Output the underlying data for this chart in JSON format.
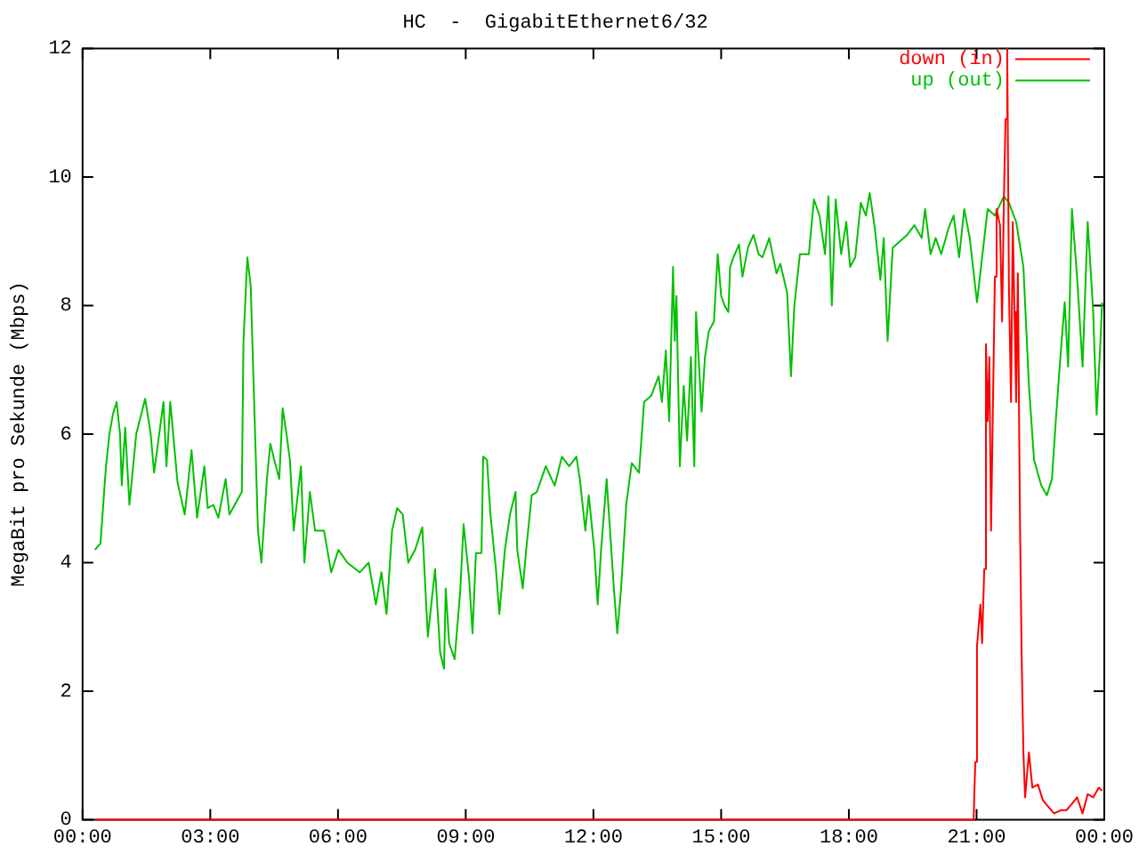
{
  "chart_data": {
    "type": "line",
    "title": "HC  -  GigabitEthernet6/32",
    "ylabel": "MegaBit pro Sekunde (Mbps)",
    "xlim": [
      0,
      24
    ],
    "xticks": [
      {
        "value": 0,
        "label": "00:00"
      },
      {
        "value": 3,
        "label": "03:00"
      },
      {
        "value": 6,
        "label": "06:00"
      },
      {
        "value": 9,
        "label": "09:00"
      },
      {
        "value": 12,
        "label": "12:00"
      },
      {
        "value": 15,
        "label": "15:00"
      },
      {
        "value": 18,
        "label": "18:00"
      },
      {
        "value": 21,
        "label": "21:00"
      },
      {
        "value": 24,
        "label": "00:00"
      }
    ],
    "ylim": [
      0,
      12
    ],
    "yticks": [
      0,
      2,
      4,
      6,
      8,
      10,
      12
    ],
    "grid": false,
    "legend": "top right",
    "marker": "none",
    "line_style": "solid",
    "series": [
      {
        "name": "down (in)",
        "color": "#ff0000",
        "x": [
          0.29,
          10,
          20.93,
          20.97,
          21.01,
          21.09,
          21.13,
          21.18,
          21.22,
          21.26,
          21.3,
          21.34,
          21.43,
          21.47,
          21.55,
          21.6,
          21.64,
          21.68,
          21.72,
          21.76,
          21.81,
          21.85,
          21.89,
          21.93,
          21.97,
          22.02,
          22.06,
          22.1,
          22.14,
          22.23,
          22.31,
          22.44,
          22.56,
          22.69,
          22.82,
          22.98,
          23.11,
          23.24,
          23.36,
          23.49,
          23.61,
          23.74,
          23.87,
          23.95
        ],
        "values": [
          0,
          0,
          0,
          0.9,
          2.7,
          3.35,
          2.75,
          3.9,
          7.4,
          6.2,
          7.2,
          4.5,
          8.45,
          9.5,
          9.25,
          7.75,
          9.6,
          10.9,
          12,
          8.3,
          6.5,
          9.3,
          7.9,
          6.5,
          8.5,
          4.6,
          2.5,
          1.05,
          0.35,
          1.05,
          0.5,
          0.55,
          0.3,
          0.2,
          0.1,
          0.15,
          0.15,
          0.25,
          0.35,
          0.1,
          0.4,
          0.35,
          0.5,
          0.45
        ]
      },
      {
        "name": "up (out)",
        "color": "#00c000",
        "x": [
          0.29,
          0.42,
          0.55,
          0.63,
          0.71,
          0.8,
          0.88,
          0.92,
          1.0,
          1.1,
          1.26,
          1.47,
          1.6,
          1.68,
          1.9,
          1.97,
          2.06,
          2.23,
          2.4,
          2.56,
          2.69,
          2.86,
          2.94,
          3.07,
          3.19,
          3.36,
          3.45,
          3.74,
          3.78,
          3.87,
          3.95,
          4.03,
          4.12,
          4.2,
          4.33,
          4.41,
          4.54,
          4.62,
          4.7,
          4.79,
          4.87,
          4.96,
          5.13,
          5.21,
          5.34,
          5.46,
          5.67,
          5.84,
          6.01,
          6.22,
          6.51,
          6.72,
          6.89,
          7.02,
          7.14,
          7.27,
          7.39,
          7.52,
          7.65,
          7.81,
          7.98,
          8.11,
          8.28,
          8.4,
          8.49,
          8.53,
          8.61,
          8.74,
          8.87,
          8.95,
          9.08,
          9.16,
          9.24,
          9.37,
          9.41,
          9.5,
          9.58,
          9.71,
          9.79,
          9.92,
          10.04,
          10.17,
          10.21,
          10.34,
          10.42,
          10.55,
          10.67,
          10.88,
          11.09,
          11.26,
          11.43,
          11.6,
          11.68,
          11.81,
          11.89,
          12.02,
          12.1,
          12.18,
          12.31,
          12.48,
          12.56,
          12.65,
          12.77,
          12.9,
          13.07,
          13.19,
          13.36,
          13.53,
          13.61,
          13.7,
          13.78,
          13.87,
          13.91,
          13.95,
          14.03,
          14.12,
          14.2,
          14.29,
          14.37,
          14.41,
          14.54,
          14.62,
          14.71,
          14.83,
          14.92,
          15.0,
          15.08,
          15.17,
          15.21,
          15.29,
          15.42,
          15.5,
          15.63,
          15.76,
          15.88,
          15.97,
          16.13,
          16.3,
          16.39,
          16.55,
          16.64,
          16.72,
          16.85,
          16.93,
          17.06,
          17.18,
          17.31,
          17.44,
          17.52,
          17.6,
          17.69,
          17.82,
          17.94,
          18.03,
          18.15,
          18.28,
          18.4,
          18.49,
          18.61,
          18.74,
          18.82,
          18.91,
          19.03,
          19.2,
          19.37,
          19.54,
          19.71,
          19.79,
          19.92,
          20.04,
          20.17,
          20.34,
          20.46,
          20.59,
          20.71,
          20.84,
          21.01,
          21.13,
          21.26,
          21.43,
          21.64,
          21.76,
          21.93,
          22.1,
          22.23,
          22.35,
          22.52,
          22.65,
          22.77,
          22.86,
          22.98,
          23.07,
          23.15,
          23.24,
          23.36,
          23.49,
          23.61,
          23.74,
          23.82,
          23.91,
          23.95
        ],
        "values": [
          4.2,
          4.3,
          5.5,
          6.0,
          6.3,
          6.5,
          6.0,
          5.2,
          6.1,
          4.9,
          6.0,
          6.55,
          6.0,
          5.4,
          6.5,
          5.5,
          6.5,
          5.25,
          4.75,
          5.75,
          4.7,
          5.5,
          4.85,
          4.9,
          4.7,
          5.3,
          4.75,
          5.1,
          7.45,
          8.75,
          8.3,
          6.5,
          4.5,
          4.0,
          5.3,
          5.85,
          5.5,
          5.3,
          6.4,
          6.0,
          5.6,
          4.5,
          5.5,
          4.0,
          5.1,
          4.5,
          4.5,
          3.85,
          4.2,
          4.0,
          3.85,
          4.0,
          3.35,
          3.85,
          3.2,
          4.5,
          4.85,
          4.75,
          4.0,
          4.2,
          4.55,
          2.85,
          3.9,
          2.6,
          2.35,
          3.6,
          2.75,
          2.5,
          3.55,
          4.6,
          3.75,
          2.9,
          4.15,
          4.15,
          5.65,
          5.6,
          4.75,
          3.9,
          3.2,
          4.2,
          4.75,
          5.1,
          4.2,
          3.6,
          4.2,
          5.05,
          5.1,
          5.5,
          5.2,
          5.65,
          5.5,
          5.65,
          5.3,
          4.5,
          5.05,
          4.2,
          3.35,
          4.2,
          5.3,
          3.6,
          2.9,
          3.6,
          4.9,
          5.55,
          5.4,
          6.5,
          6.6,
          6.9,
          6.5,
          7.3,
          6.2,
          8.6,
          7.45,
          8.15,
          5.5,
          6.75,
          5.9,
          7.2,
          5.5,
          7.9,
          6.35,
          7.2,
          7.6,
          7.75,
          8.8,
          8.15,
          8.0,
          7.9,
          8.6,
          8.75,
          8.95,
          8.45,
          8.9,
          9.1,
          8.8,
          8.75,
          9.05,
          8.5,
          8.65,
          8.2,
          6.9,
          8.0,
          8.8,
          8.8,
          8.8,
          9.65,
          9.4,
          8.8,
          9.7,
          8.0,
          9.65,
          8.8,
          9.3,
          8.6,
          8.75,
          9.6,
          9.4,
          9.75,
          9.2,
          8.4,
          9.05,
          7.45,
          8.9,
          9.0,
          9.1,
          9.25,
          9.05,
          9.5,
          8.8,
          9.05,
          8.8,
          9.2,
          9.4,
          8.75,
          9.5,
          9.05,
          8.05,
          8.75,
          9.5,
          9.4,
          9.7,
          9.6,
          9.3,
          8.6,
          6.75,
          5.6,
          5.2,
          5.05,
          5.3,
          6.2,
          7.3,
          8.05,
          7.05,
          9.5,
          8.45,
          7.05,
          9.3,
          7.9,
          6.3,
          7.45,
          8.05
        ]
      }
    ]
  }
}
